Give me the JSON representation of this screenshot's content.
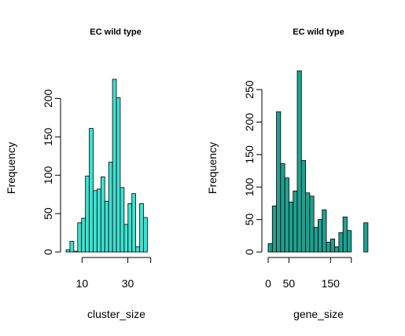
{
  "chart_data": [
    {
      "type": "bar",
      "title": "EC wild type",
      "xlabel": "cluster_size",
      "ylabel": "Frequency",
      "bar_color": "#40E0D0",
      "x_ticks": [
        10,
        30
      ],
      "x_tick_labels": [
        "10",
        "30"
      ],
      "x_axis_range": [
        10,
        40
      ],
      "y_ticks": [
        0,
        50,
        100,
        150,
        200
      ],
      "y_tick_labels": [
        "0",
        "50",
        "100",
        "150",
        "200"
      ],
      "ylim": [
        0,
        225
      ],
      "x_range": [
        3,
        47
      ],
      "bin_width": 1.6923,
      "values": [
        3,
        14,
        1,
        38,
        44,
        99,
        161,
        80,
        82,
        98,
        66,
        117,
        225,
        201,
        84,
        36,
        63,
        76,
        7,
        63,
        45
      ]
    },
    {
      "type": "bar",
      "title": "EC wild type",
      "xlabel": "gene_size",
      "ylabel": "Frequency",
      "bar_color": "#20A090",
      "x_ticks": [
        0,
        50,
        150
      ],
      "x_tick_labels": [
        "0",
        "50",
        "150"
      ],
      "x_axis_range": [
        0,
        200
      ],
      "y_ticks": [
        0,
        50,
        100,
        150,
        200,
        250
      ],
      "y_tick_labels": [
        "0",
        "50",
        "100",
        "150",
        "200",
        "250"
      ],
      "ylim": [
        0,
        280
      ],
      "x_range": [
        0,
        244
      ],
      "bin_width": 10,
      "values": [
        13,
        71,
        216,
        136,
        114,
        77,
        94,
        279,
        141,
        91,
        86,
        38,
        50,
        65,
        15,
        20,
        8,
        30,
        54,
        33,
        0,
        0,
        0,
        45
      ]
    }
  ]
}
